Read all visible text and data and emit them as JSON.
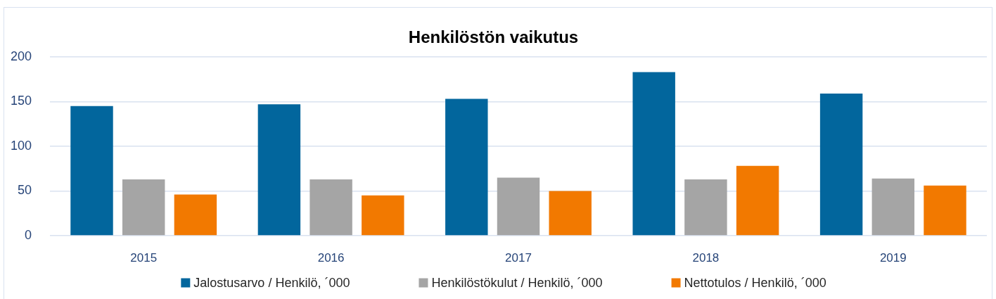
{
  "chart_data": {
    "type": "bar",
    "title": "Henkilöstön vaikutus",
    "categories": [
      "2015",
      "2016",
      "2017",
      "2018",
      "2019"
    ],
    "series": [
      {
        "name": "Jalostusarvo / Henkilö, ´000",
        "color": "#02669d",
        "values": [
          145,
          147,
          153,
          183,
          159
        ]
      },
      {
        "name": "Henkilöstökulut / Henkilö, ´000",
        "color": "#a5a5a5",
        "values": [
          63,
          63,
          65,
          63,
          64
        ]
      },
      {
        "name": "Nettotulos / Henkilö, ´000",
        "color": "#f27900",
        "values": [
          46,
          45,
          50,
          78,
          56
        ]
      }
    ],
    "ylim": [
      0,
      200
    ],
    "yticks": [
      0,
      50,
      100,
      150,
      200
    ],
    "grid": "y",
    "legend": "bottom"
  }
}
